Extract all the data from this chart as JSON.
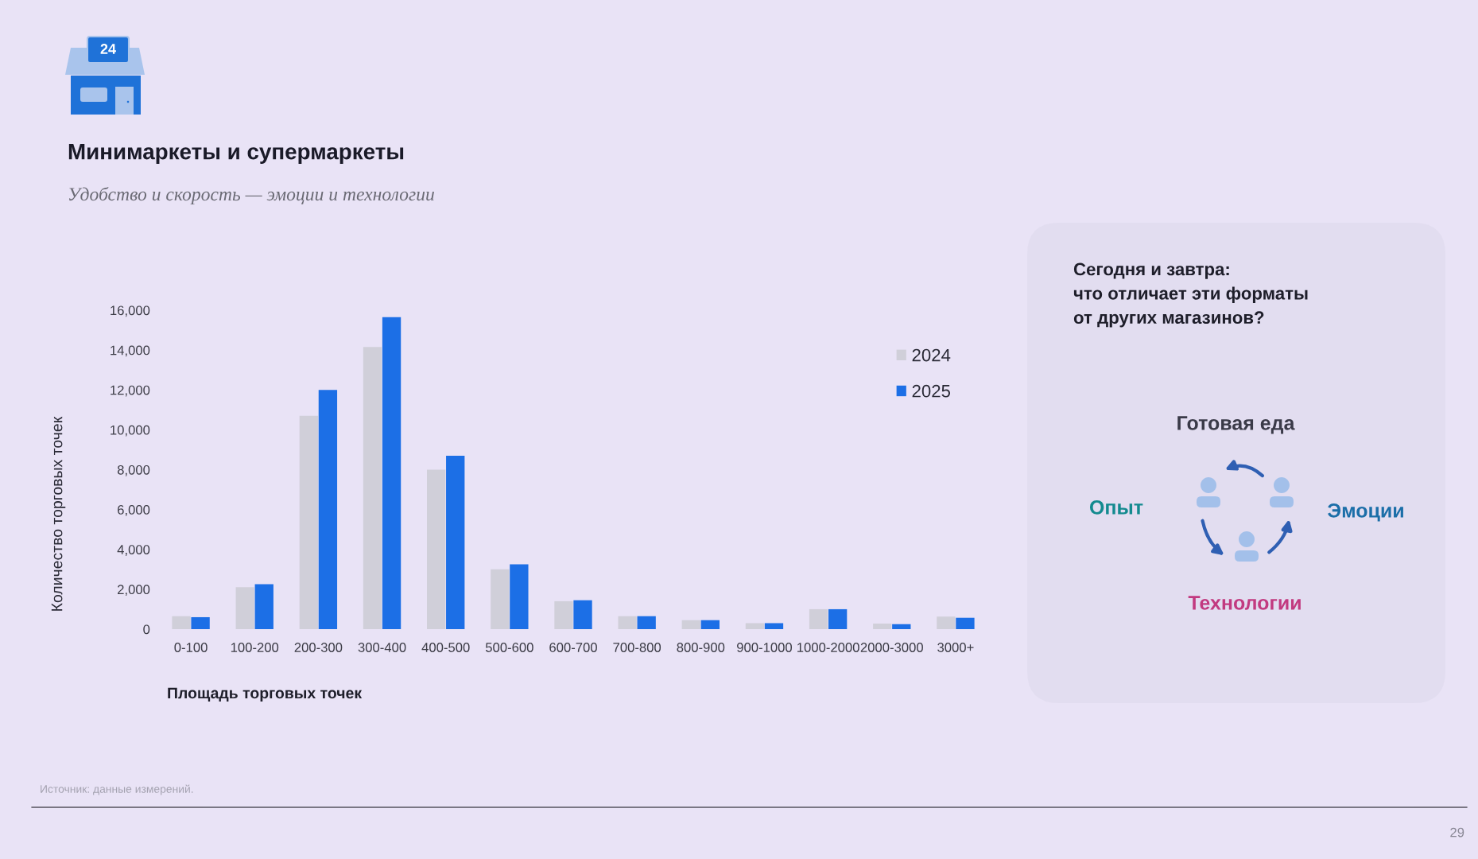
{
  "chart_data": [
    {
      "type": "bar",
      "title": "Минимаркеты и супермаркеты",
      "subtitle": "Удобство и скорость — эмоции и технологии",
      "xlabel": "Площадь торговых точек",
      "ylabel": "Количество торговых точек",
      "categories": [
        "0-100",
        "100-200",
        "200-300",
        "300-400",
        "400-500",
        "500-600",
        "600-700",
        "700-800",
        "800-900",
        "900-1000",
        "1000-2000",
        "2000-3000",
        "3000+"
      ],
      "series": [
        {
          "name": "2024",
          "color": "#d0cfd9",
          "values": [
            650,
            2100,
            10700,
            14150,
            8000,
            3000,
            1400,
            650,
            450,
            300,
            1000,
            280,
            630
          ]
        },
        {
          "name": "2025",
          "color": "#1c6fe6",
          "values": [
            600,
            2250,
            12000,
            15650,
            8700,
            3250,
            1450,
            650,
            450,
            300,
            1000,
            250,
            570
          ]
        }
      ],
      "ylim": [
        0,
        16000
      ],
      "yticks": [
        0,
        {
          "value": 2000,
          "label": "2,000"
        },
        {
          "value": 4000,
          "label": "4,000"
        },
        {
          "value": 6000,
          "label": "6,000"
        },
        {
          "value": 8000,
          "label": "8,000"
        },
        {
          "value": 10000,
          "label": "10,000"
        },
        {
          "value": 12000,
          "label": "12,000"
        },
        {
          "value": 14000,
          "label": "14,000"
        },
        {
          "value": 16000,
          "label": "16,000"
        }
      ],
      "legend": "top right",
      "annotations": [
        "Источник: данные измерений.",
        "29",
        "24"
      ]
    },
    {
      "type": "other",
      "title": "Сегодня и завтра:\nчто отличает эти форматы\nот других магазинов?",
      "annotations": [
        "Готовая еда",
        "Опыт",
        "Эмоции",
        "Технологии"
      ],
      "colors": [
        "#3a3a48",
        "#138a8f",
        "#1b6ea8",
        "#c23a80"
      ]
    }
  ]
}
